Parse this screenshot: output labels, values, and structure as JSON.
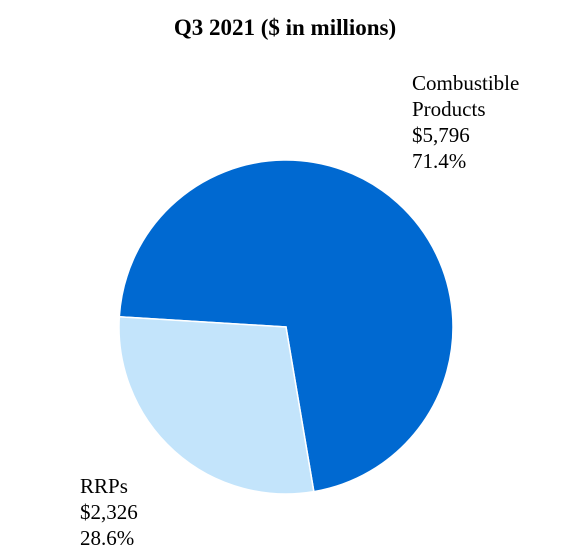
{
  "chart_data": {
    "type": "pie",
    "title": "Q3 2021 ($ in millions)",
    "slices": [
      {
        "name_lines": [
          "Combustible",
          "Products"
        ],
        "value": 5796,
        "value_label": "$5,796",
        "percent": 71.4,
        "percent_label": "71.4%",
        "color": "#0069d1"
      },
      {
        "name_lines": [
          "RRPs"
        ],
        "value": 2326,
        "value_label": "$2,326",
        "percent": 28.6,
        "percent_label": "28.6%",
        "color": "#c3e4fb"
      }
    ],
    "legend": "none",
    "grid": false
  }
}
